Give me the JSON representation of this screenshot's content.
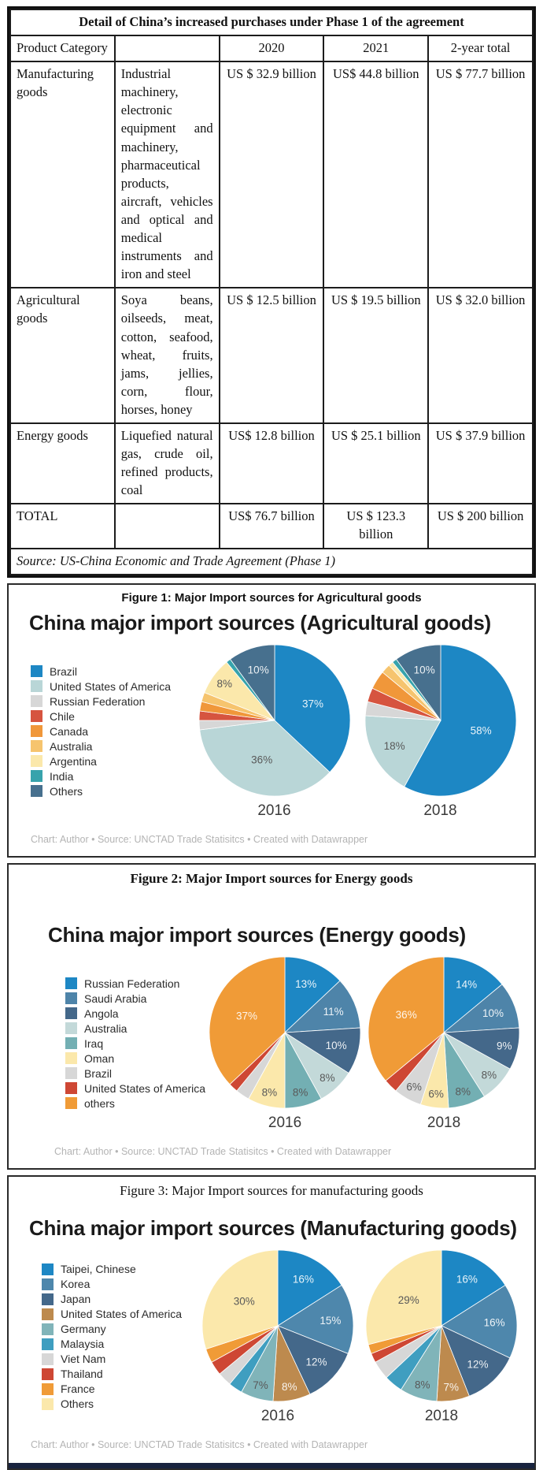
{
  "table": {
    "title": "Detail of China’s increased purchases under Phase 1 of the agreement",
    "headers": {
      "category": "Product Category",
      "description": "",
      "y2020": "2020",
      "y2021": "2021",
      "total": "2-year total"
    },
    "rows": [
      {
        "category": "Manufacturing goods",
        "description": "Industrial machinery, electronic equipment and machinery, pharmaceutical products, aircraft, vehicles and optical and medical instruments and iron and steel",
        "y2020": "US $ 32.9 billion",
        "y2021": "US$ 44.8 billion",
        "total": "US $ 77.7 billion"
      },
      {
        "category": "Agricultural goods",
        "description": "Soya beans, oilseeds, meat, cotton, seafood, wheat, fruits, jams, jellies, corn, flour, horses, honey",
        "y2020": "US $ 12.5 billion",
        "y2021": "US $ 19.5 billion",
        "total": "US $ 32.0 billion"
      },
      {
        "category": "Energy goods",
        "description": "Liquefied natural gas, crude oil, refined products, coal",
        "y2020": "US$ 12.8 billion",
        "y2021": "US $ 25.1 billion",
        "total": "US $ 37.9 billion"
      },
      {
        "category": "TOTAL",
        "description": "",
        "y2020": "US$ 76.7 billion",
        "y2021": "US $ 123.3 billion",
        "total": "US $ 200 billion"
      }
    ],
    "source": "Source:  US-China Economic and Trade Agreement (Phase 1)"
  },
  "chart_data": [
    {
      "type": "pie",
      "figure_caption": "Figure 1: Major Import sources for Agricultural goods",
      "title": "China major import sources (Agricultural goods)",
      "years": [
        "2016",
        "2018"
      ],
      "legend_position": "left",
      "label_threshold_pct": 6,
      "categories": [
        {
          "name": "Brazil",
          "color": "#1d87c4",
          "dark_label": false,
          "values": [
            37,
            58
          ]
        },
        {
          "name": "United States of America",
          "color": "#b9d6d7",
          "dark_label": true,
          "values": [
            36,
            18
          ]
        },
        {
          "name": "Russian Federation",
          "color": "#d7d7d7",
          "dark_label": true,
          "values": [
            2,
            3
          ]
        },
        {
          "name": "Chile",
          "color": "#d6543f",
          "dark_label": false,
          "values": [
            2,
            3
          ]
        },
        {
          "name": "Canada",
          "color": "#f0973a",
          "dark_label": false,
          "values": [
            2,
            4
          ]
        },
        {
          "name": "Australia",
          "color": "#f6c46e",
          "dark_label": true,
          "values": [
            2,
            2
          ]
        },
        {
          "name": "Argentina",
          "color": "#fbe8ab",
          "dark_label": true,
          "values": [
            8,
            1
          ]
        },
        {
          "name": "India",
          "color": "#37a3ac",
          "dark_label": false,
          "values": [
            1,
            1
          ]
        },
        {
          "name": "Others",
          "color": "#47708e",
          "dark_label": false,
          "values": [
            10,
            10
          ]
        }
      ],
      "footer": "Chart: Author • Source: UNCTAD Trade Statisitcs • Created with Datawrapper"
    },
    {
      "type": "pie",
      "figure_caption": "Figure 2: Major Import sources for Energy goods",
      "title": "China major import sources (Energy goods)",
      "years": [
        "2016",
        "2018"
      ],
      "legend_position": "left",
      "label_threshold_pct": 6,
      "categories": [
        {
          "name": "Russian Federation",
          "color": "#1d87c4",
          "dark_label": false,
          "values": [
            13,
            14
          ]
        },
        {
          "name": "Saudi Arabia",
          "color": "#4e84a9",
          "dark_label": false,
          "values": [
            11,
            10
          ]
        },
        {
          "name": "Angola",
          "color": "#44688a",
          "dark_label": false,
          "values": [
            10,
            9
          ]
        },
        {
          "name": "Australia",
          "color": "#c3d9d9",
          "dark_label": true,
          "values": [
            8,
            8
          ]
        },
        {
          "name": "Iraq",
          "color": "#73afb3",
          "dark_label": true,
          "values": [
            8,
            8
          ]
        },
        {
          "name": "Oman",
          "color": "#fbe8ab",
          "dark_label": true,
          "values": [
            8,
            6
          ]
        },
        {
          "name": "Brazil",
          "color": "#d7d7d7",
          "dark_label": true,
          "values": [
            3,
            6
          ]
        },
        {
          "name": "United States of America",
          "color": "#ce4734",
          "dark_label": false,
          "values": [
            2,
            3
          ]
        },
        {
          "name": "others",
          "color": "#f09b37",
          "dark_label": false,
          "values": [
            37,
            36
          ]
        }
      ],
      "footer": "Chart: Author • Source: UNCTAD Trade Statisitcs • Created with Datawrapper"
    },
    {
      "type": "pie",
      "figure_caption": "Figure 3: Major Import sources for manufacturing goods",
      "title": "China major import sources (Manufacturing goods)",
      "years": [
        "2016",
        "2018"
      ],
      "legend_position": "left",
      "label_threshold_pct": 6,
      "categories": [
        {
          "name": "Taipei, Chinese",
          "color": "#1d87c4",
          "dark_label": false,
          "values": [
            16,
            16
          ]
        },
        {
          "name": "Korea",
          "color": "#4e87ac",
          "dark_label": false,
          "values": [
            15,
            16
          ]
        },
        {
          "name": "Japan",
          "color": "#44688a",
          "dark_label": false,
          "values": [
            12,
            12
          ]
        },
        {
          "name": "United States of America",
          "color": "#bd8a4e",
          "dark_label": false,
          "values": [
            8,
            7
          ]
        },
        {
          "name": "Germany",
          "color": "#80b4b9",
          "dark_label": true,
          "values": [
            7,
            8
          ]
        },
        {
          "name": "Malaysia",
          "color": "#3f9ec0",
          "dark_label": false,
          "values": [
            3,
            4
          ]
        },
        {
          "name": "Viet Nam",
          "color": "#d7d7d7",
          "dark_label": true,
          "values": [
            3,
            4
          ]
        },
        {
          "name": "Thailand",
          "color": "#ce4734",
          "dark_label": false,
          "values": [
            3,
            2
          ]
        },
        {
          "name": "France",
          "color": "#f09b37",
          "dark_label": false,
          "values": [
            3,
            2
          ]
        },
        {
          "name": "Others",
          "color": "#fbe8ab",
          "dark_label": true,
          "values": [
            30,
            29
          ]
        }
      ],
      "footer": "Chart: Author • Source: UNCTAD Trade Statisitcs • Created with Datawrapper"
    }
  ]
}
